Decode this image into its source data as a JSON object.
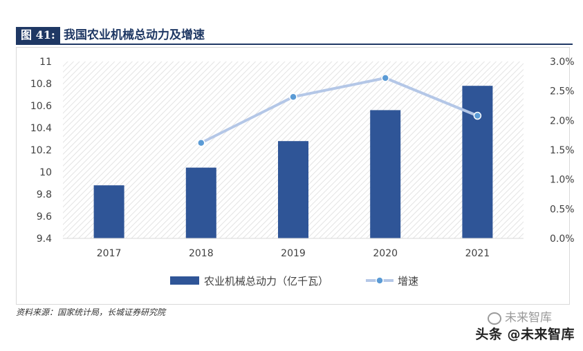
{
  "figure": {
    "label": "图 41:",
    "title": "我国农业机械总动力及增速",
    "source": "资料来源：国家统计局，长城证券研究院"
  },
  "watermark": {
    "text": "头条 @未来智库",
    "ghost_text": "未来智库"
  },
  "chart_data": {
    "type": "bar",
    "categories": [
      "2017",
      "2018",
      "2019",
      "2020",
      "2021"
    ],
    "series": [
      {
        "name": "农业机械总动力（亿千瓦）",
        "type": "bar",
        "axis": "left",
        "color": "#2f5597",
        "values": [
          9.88,
          10.04,
          10.28,
          10.56,
          10.78
        ]
      },
      {
        "name": "增速",
        "type": "line",
        "axis": "right",
        "color": "#b4c7e7",
        "marker_color": "#5b9bd5",
        "values": [
          null,
          0.0162,
          0.024,
          0.0272,
          0.0208
        ]
      }
    ],
    "y_left": {
      "range": [
        9.4,
        11
      ],
      "ticks": [
        9.4,
        9.6,
        9.8,
        10,
        10.2,
        10.4,
        10.6,
        10.8,
        11
      ],
      "tick_labels": [
        "9.4",
        "9.6",
        "9.8",
        "10",
        "10.2",
        "10.4",
        "10.6",
        "10.8",
        "11"
      ]
    },
    "y_right": {
      "range": [
        0,
        0.03
      ],
      "ticks": [
        0,
        0.005,
        0.01,
        0.015,
        0.02,
        0.025,
        0.03
      ],
      "tick_labels": [
        "0.0%",
        "0.5%",
        "1.0%",
        "1.5%",
        "2.0%",
        "2.5%",
        "3.0%"
      ]
    },
    "grid": false,
    "plot_background": "hatched",
    "legend": {
      "position": "bottom"
    }
  }
}
